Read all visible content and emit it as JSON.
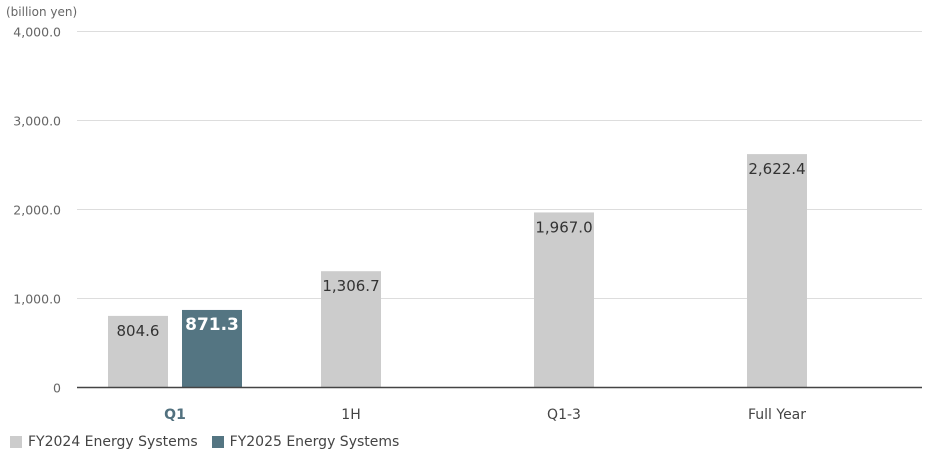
{
  "chart_data": {
    "type": "bar",
    "unit_label": "(billion yen)",
    "categories": [
      "Q1",
      "1H",
      "Q1-3",
      "Full Year"
    ],
    "highlighted_category": "Q1",
    "series": [
      {
        "name": "FY2024 Energy Systems",
        "color": "#cccccc",
        "values": [
          804.6,
          1306.7,
          1967.0,
          2622.4
        ],
        "labels": [
          "804.6",
          "1,306.7",
          "1,967.0",
          "2,622.4"
        ]
      },
      {
        "name": "FY2025 Energy Systems",
        "color": "#547582",
        "values": [
          871.3,
          null,
          null,
          null
        ],
        "labels": [
          "871.3",
          null,
          null,
          null
        ]
      }
    ],
    "ylim": [
      0,
      4000
    ],
    "yticks": [
      {
        "value": 0,
        "label": "0"
      },
      {
        "value": 1000,
        "label": "1,000.0"
      },
      {
        "value": 2000,
        "label": "2,000.0"
      },
      {
        "value": 3000,
        "label": "3,000.0"
      },
      {
        "value": 4000,
        "label": "4,000.0"
      }
    ],
    "grid": true,
    "legend_position": "bottom-left"
  }
}
